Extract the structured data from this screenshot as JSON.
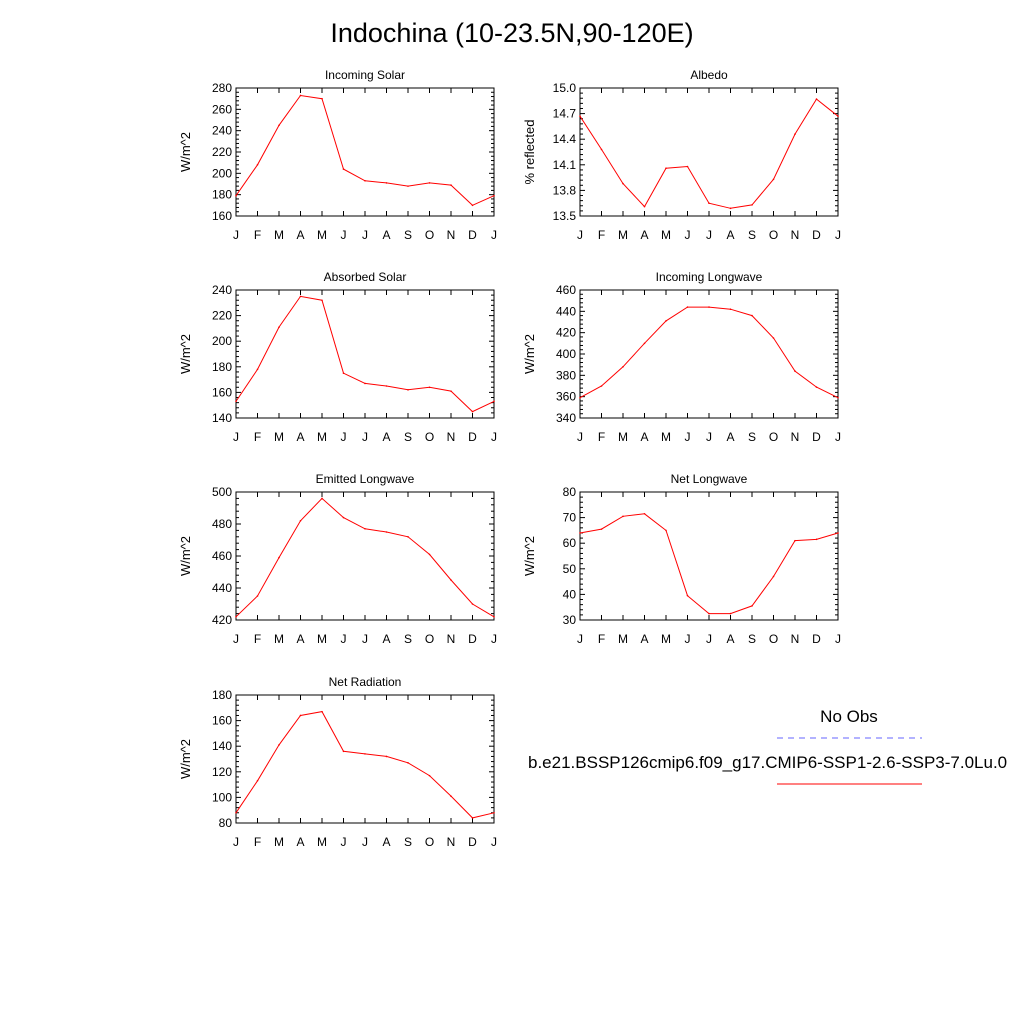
{
  "title": "Indochina (10-23.5N,90-120E)",
  "legend": {
    "obs_label": "No Obs",
    "model_label": "b.e21.BSSP126cmip6.f09_g17.CMIP6-SSP1-2.6-SSP3-7.0Lu.0",
    "obs_color": "#6666ff",
    "model_color": "#ff0000"
  },
  "chart_data": [
    {
      "type": "line",
      "title": "Incoming Solar",
      "ylabel": "W/m^2",
      "x": [
        "J",
        "F",
        "M",
        "A",
        "M",
        "J",
        "J",
        "A",
        "S",
        "O",
        "N",
        "D",
        "J"
      ],
      "ylim": [
        160,
        280
      ],
      "yticks": [
        "160",
        "180",
        "200",
        "220",
        "240",
        "260",
        "280"
      ],
      "series": [
        {
          "values": [
            179,
            208,
            245,
            273,
            270,
            204,
            193,
            191,
            188,
            191,
            189,
            170,
            179
          ]
        }
      ]
    },
    {
      "type": "line",
      "title": "Albedo",
      "ylabel": "% reflected",
      "x": [
        "J",
        "F",
        "M",
        "A",
        "M",
        "J",
        "J",
        "A",
        "S",
        "O",
        "N",
        "D",
        "J"
      ],
      "ylim": [
        13.5,
        15.0
      ],
      "yticks": [
        "13.5",
        "13.8",
        "14.1",
        "14.4",
        "14.7",
        "15.0"
      ],
      "series": [
        {
          "values": [
            14.67,
            14.28,
            13.88,
            13.61,
            14.06,
            14.08,
            13.65,
            13.59,
            13.63,
            13.93,
            14.46,
            14.87,
            14.67
          ]
        }
      ]
    },
    {
      "type": "line",
      "title": "Absorbed Solar",
      "ylabel": "W/m^2",
      "x": [
        "J",
        "F",
        "M",
        "A",
        "M",
        "J",
        "J",
        "A",
        "S",
        "O",
        "N",
        "D",
        "J"
      ],
      "ylim": [
        140,
        240
      ],
      "yticks": [
        "140",
        "160",
        "180",
        "200",
        "220",
        "240"
      ],
      "series": [
        {
          "values": [
            153,
            178,
            211,
            235,
            232,
            175,
            167,
            165,
            162,
            164,
            161,
            145,
            153
          ]
        }
      ]
    },
    {
      "type": "line",
      "title": "Incoming Longwave",
      "ylabel": "W/m^2",
      "x": [
        "J",
        "F",
        "M",
        "A",
        "M",
        "J",
        "J",
        "A",
        "S",
        "O",
        "N",
        "D",
        "J"
      ],
      "ylim": [
        340,
        460
      ],
      "yticks": [
        "340",
        "360",
        "380",
        "400",
        "420",
        "440",
        "460"
      ],
      "series": [
        {
          "values": [
            359,
            370,
            388,
            410,
            431,
            444,
            444,
            442,
            436,
            415,
            384,
            369,
            359
          ]
        }
      ]
    },
    {
      "type": "line",
      "title": "Emitted Longwave",
      "ylabel": "W/m^2",
      "x": [
        "J",
        "F",
        "M",
        "A",
        "M",
        "J",
        "J",
        "A",
        "S",
        "O",
        "N",
        "D",
        "J"
      ],
      "ylim": [
        420,
        500
      ],
      "yticks": [
        "420",
        "440",
        "460",
        "480",
        "500"
      ],
      "series": [
        {
          "values": [
            422,
            435,
            459,
            482,
            496,
            484,
            477,
            475,
            472,
            461,
            445,
            430,
            422
          ]
        }
      ]
    },
    {
      "type": "line",
      "title": "Net Longwave",
      "ylabel": "W/m^2",
      "x": [
        "J",
        "F",
        "M",
        "A",
        "M",
        "J",
        "J",
        "A",
        "S",
        "O",
        "N",
        "D",
        "J"
      ],
      "ylim": [
        30,
        80
      ],
      "yticks": [
        "30",
        "40",
        "50",
        "60",
        "70",
        "80"
      ],
      "series": [
        {
          "values": [
            64,
            65.5,
            70.5,
            71.5,
            65,
            39.5,
            32.5,
            32.5,
            35.5,
            47,
            61,
            61.5,
            64
          ]
        }
      ]
    },
    {
      "type": "line",
      "title": "Net Radiation",
      "ylabel": "W/m^2",
      "x": [
        "J",
        "F",
        "M",
        "A",
        "M",
        "J",
        "J",
        "A",
        "S",
        "O",
        "N",
        "D",
        "J"
      ],
      "ylim": [
        80,
        180
      ],
      "yticks": [
        "80",
        "100",
        "120",
        "140",
        "160",
        "180"
      ],
      "series": [
        {
          "values": [
            88,
            113,
            141,
            164,
            167,
            136,
            134,
            132,
            127,
            117,
            101,
            84,
            88
          ]
        }
      ]
    }
  ]
}
